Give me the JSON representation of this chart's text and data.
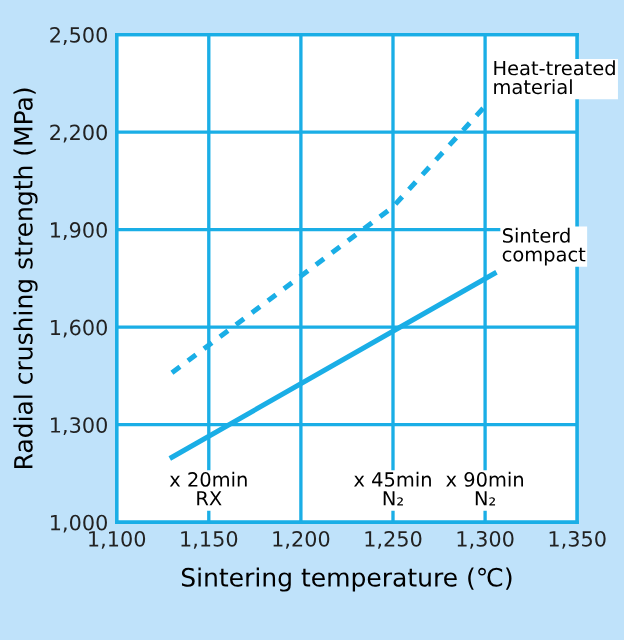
{
  "chart_data": {
    "type": "line",
    "xlabel": "Sintering temperature (℃)",
    "ylabel": "Radial crushing strength (MPa)",
    "series": [
      {
        "name": "Heat-treated\nmaterial",
        "color": "#1aaee6",
        "line_style": "dotted",
        "x": [
          1130,
          1250,
          1300
        ],
        "values": [
          1460,
          1970,
          2280
        ]
      },
      {
        "name": "Sinterd\ncompact",
        "color": "#1aaee6",
        "line_style": "solid",
        "x": [
          1130,
          1305
        ],
        "values": [
          1200,
          1765
        ]
      }
    ],
    "xlim": [
      1100,
      1350
    ],
    "xticks": [
      {
        "value": 1100,
        "label": "1,100"
      },
      {
        "value": 1150,
        "label": "1,150"
      },
      {
        "value": 1200,
        "label": "1,200"
      },
      {
        "value": 1250,
        "label": "1,250"
      },
      {
        "value": 1300,
        "label": "1,300"
      },
      {
        "value": 1350,
        "label": "1,350"
      }
    ],
    "ylim": [
      1000,
      2500
    ],
    "yticks": [
      {
        "value": 1000,
        "label": "1,000"
      },
      {
        "value": 1300,
        "label": "1,300"
      },
      {
        "value": 1600,
        "label": "1,600"
      },
      {
        "value": 1900,
        "label": "1,900"
      },
      {
        "value": 2200,
        "label": "2,200"
      },
      {
        "value": 2500,
        "label": "2,500"
      }
    ],
    "annotations": [
      "x 20min\nRX",
      "x 45min\nN₂",
      "x 90min\nN₂"
    ],
    "grid": true,
    "legend": false,
    "marker": "none"
  }
}
